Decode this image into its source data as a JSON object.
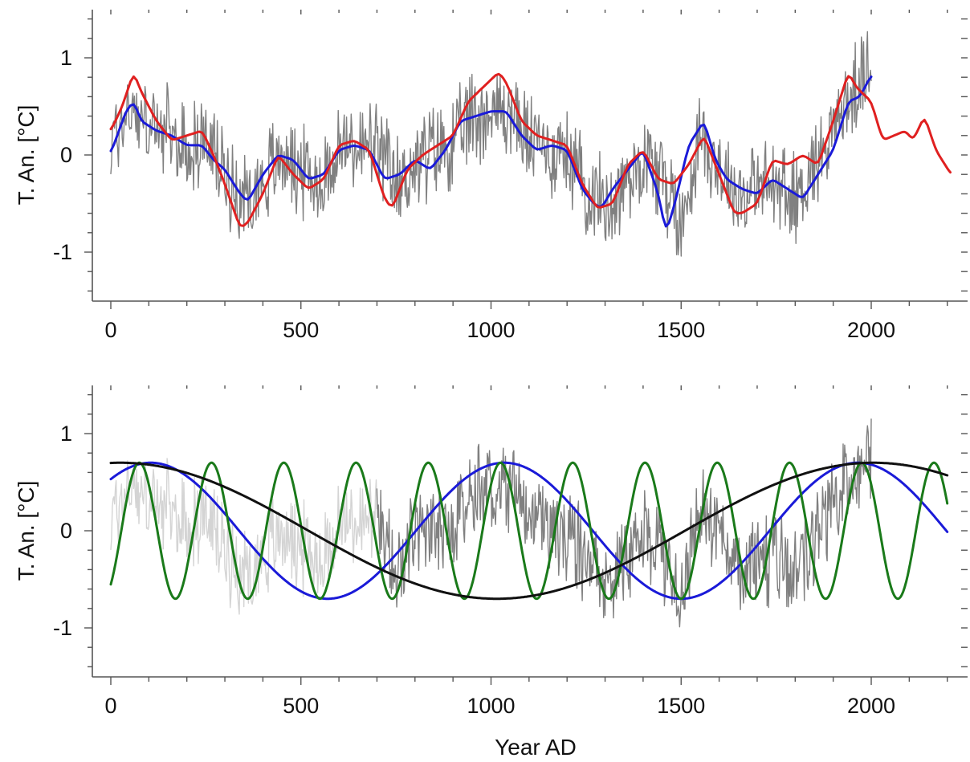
{
  "chart_data": [
    {
      "type": "line",
      "ylabel": "T. An. [°C]",
      "xlabel": "",
      "xlim": [
        -50,
        2210
      ],
      "ylim": [
        -1.5,
        1.5
      ],
      "xticks": [
        "0",
        "500",
        "1000",
        "1500",
        "2000"
      ],
      "yticks": [
        "-1",
        "0",
        "1"
      ],
      "grid": false,
      "legend": "none",
      "series": [
        {
          "color": "#808080",
          "kind": "noisy-proxy",
          "x": [
            0,
            50,
            100,
            150,
            200,
            250,
            300,
            350,
            400,
            450,
            500,
            550,
            600,
            650,
            700,
            750,
            800,
            850,
            900,
            950,
            1000,
            1050,
            1100,
            1150,
            1200,
            1250,
            1300,
            1350,
            1400,
            1450,
            1500,
            1550,
            1600,
            1650,
            1700,
            1750,
            1800,
            1850,
            1900,
            1950,
            2000
          ],
          "y": [
            0.1,
            0.5,
            0.3,
            0.2,
            0.05,
            0.15,
            -0.2,
            -0.45,
            -0.25,
            0.0,
            -0.15,
            -0.3,
            0.05,
            0.1,
            0.05,
            -0.3,
            -0.1,
            0.05,
            0.1,
            0.4,
            0.45,
            0.45,
            0.15,
            0.05,
            0.0,
            -0.3,
            -0.55,
            -0.3,
            0.0,
            -0.2,
            -0.75,
            0.25,
            -0.15,
            -0.4,
            -0.35,
            -0.3,
            -0.45,
            -0.1,
            0.3,
            0.6,
            0.85
          ]
        },
        {
          "color": "#1a1ad8",
          "x": [
            0,
            40,
            60,
            80,
            120,
            160,
            200,
            240,
            270,
            300,
            340,
            360,
            400,
            440,
            480,
            520,
            560,
            600,
            640,
            680,
            720,
            760,
            800,
            840,
            880,
            920,
            960,
            1000,
            1040,
            1080,
            1120,
            1160,
            1200,
            1240,
            1270,
            1290,
            1320,
            1360,
            1400,
            1440,
            1460,
            1480,
            1520,
            1560,
            1590,
            1620,
            1660,
            1700,
            1740,
            1780,
            1820,
            1860,
            1900,
            1940,
            1970,
            2000
          ],
          "y": [
            0.02,
            0.45,
            0.55,
            0.35,
            0.25,
            0.2,
            0.1,
            0.1,
            -0.05,
            -0.15,
            -0.4,
            -0.48,
            -0.2,
            0.0,
            -0.05,
            -0.25,
            -0.2,
            0.05,
            0.1,
            0.05,
            -0.25,
            -0.2,
            -0.05,
            -0.15,
            0.05,
            0.35,
            0.4,
            0.45,
            0.45,
            0.2,
            0.05,
            0.1,
            0.05,
            -0.35,
            -0.5,
            -0.55,
            -0.35,
            -0.15,
            0.05,
            -0.4,
            -0.8,
            -0.55,
            0.1,
            0.35,
            -0.05,
            -0.25,
            -0.35,
            -0.4,
            -0.25,
            -0.35,
            -0.45,
            -0.2,
            0.05,
            0.55,
            0.6,
            0.82
          ]
        },
        {
          "color": "#e02020",
          "x": [
            0,
            30,
            60,
            80,
            120,
            160,
            200,
            240,
            270,
            300,
            340,
            360,
            400,
            440,
            480,
            520,
            560,
            600,
            640,
            680,
            720,
            740,
            780,
            820,
            860,
            900,
            940,
            980,
            1020,
            1040,
            1080,
            1120,
            1160,
            1200,
            1240,
            1280,
            1320,
            1360,
            1400,
            1440,
            1480,
            1520,
            1560,
            1600,
            1640,
            1660,
            1700,
            1740,
            1780,
            1820,
            1860,
            1900,
            1940,
            1960,
            2000,
            2030,
            2060,
            2090,
            2110,
            2140,
            2170,
            2210
          ],
          "y": [
            0.25,
            0.5,
            0.85,
            0.65,
            0.35,
            0.15,
            0.2,
            0.25,
            0.0,
            -0.3,
            -0.75,
            -0.7,
            -0.4,
            0.0,
            -0.2,
            -0.35,
            -0.25,
            0.1,
            0.15,
            0.05,
            -0.45,
            -0.55,
            -0.15,
            0.0,
            0.1,
            0.2,
            0.55,
            0.7,
            0.85,
            0.75,
            0.35,
            0.2,
            0.15,
            0.1,
            -0.3,
            -0.55,
            -0.5,
            -0.1,
            0.05,
            -0.25,
            -0.3,
            -0.1,
            0.2,
            -0.2,
            -0.6,
            -0.6,
            -0.5,
            -0.05,
            -0.1,
            0.0,
            -0.1,
            0.35,
            0.85,
            0.7,
            0.55,
            0.15,
            0.2,
            0.25,
            0.15,
            0.4,
            0.05,
            -0.2
          ]
        }
      ]
    },
    {
      "type": "line",
      "ylabel": "T. An. [°C]",
      "xlabel": "Year AD",
      "xlim": [
        -50,
        2210
      ],
      "ylim": [
        -1.5,
        1.5
      ],
      "xticks": [
        "0",
        "500",
        "1000",
        "1500",
        "2000"
      ],
      "yticks": [
        "-1",
        "0",
        "1"
      ],
      "grid": false,
      "legend": "none",
      "series": [
        {
          "color": "#d4d4d4",
          "kind": "noisy-proxy",
          "x": [
            0,
            50,
            100,
            150,
            200,
            250,
            300,
            350,
            400,
            450,
            500,
            550,
            600,
            650,
            700
          ],
          "y": [
            0.1,
            0.5,
            0.3,
            0.2,
            0.05,
            0.15,
            -0.2,
            -0.45,
            -0.25,
            0.0,
            -0.15,
            -0.3,
            0.05,
            0.1,
            0.05
          ]
        },
        {
          "color": "#808080",
          "kind": "noisy-proxy",
          "x": [
            700,
            750,
            800,
            850,
            900,
            950,
            1000,
            1050,
            1100,
            1150,
            1200,
            1250,
            1300,
            1350,
            1400,
            1450,
            1500,
            1550,
            1600,
            1650,
            1700,
            1750,
            1800,
            1850,
            1900,
            1950,
            2000
          ],
          "y": [
            0.05,
            -0.3,
            -0.1,
            0.05,
            0.1,
            0.4,
            0.45,
            0.45,
            0.15,
            0.05,
            0.0,
            -0.3,
            -0.55,
            -0.3,
            0.0,
            -0.2,
            -0.75,
            0.25,
            -0.15,
            -0.4,
            -0.35,
            -0.3,
            -0.45,
            -0.1,
            0.3,
            0.6,
            0.85
          ]
        },
        {
          "color": "#1a1ad8",
          "kind": "sine",
          "amplitude": 0.7,
          "period": 930,
          "peak": 1035,
          "xrange": [
            0,
            2200
          ]
        },
        {
          "color": "#1a7a1a",
          "kind": "sine",
          "amplitude": 0.7,
          "period": 190,
          "peak": 1025,
          "xrange": [
            0,
            2200
          ]
        },
        {
          "color": "#111111",
          "kind": "sine",
          "amplitude": 0.7,
          "period": 1980,
          "peak": 25,
          "xrange": [
            0,
            2200
          ]
        }
      ]
    }
  ]
}
